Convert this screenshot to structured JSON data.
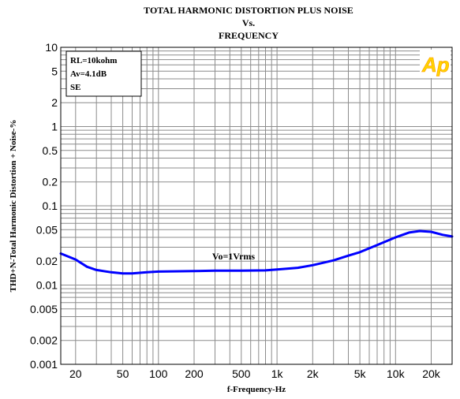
{
  "chart_data": {
    "type": "line",
    "title_lines": [
      "TOTAL HARMONIC DISTORTION PLUS NOISE",
      "Vs.",
      "FREQUENCY"
    ],
    "xlabel": "f-Frequency-Hz",
    "ylabel": "THD+N-Total Harmonic Distortion + Noise-%",
    "x_scale": "log",
    "y_scale": "log",
    "xlim": [
      15,
      30000
    ],
    "ylim": [
      0.001,
      10
    ],
    "grid": true,
    "x_ticks": [
      {
        "value": 20,
        "label": "20"
      },
      {
        "value": 50,
        "label": "50"
      },
      {
        "value": 100,
        "label": "100"
      },
      {
        "value": 200,
        "label": "200"
      },
      {
        "value": 500,
        "label": "500"
      },
      {
        "value": 1000,
        "label": "1k"
      },
      {
        "value": 2000,
        "label": "2k"
      },
      {
        "value": 5000,
        "label": "5k"
      },
      {
        "value": 10000,
        "label": "10k"
      },
      {
        "value": 20000,
        "label": "20k"
      }
    ],
    "y_ticks": [
      {
        "value": 10,
        "label": "10"
      },
      {
        "value": 5,
        "label": "5"
      },
      {
        "value": 2,
        "label": "2"
      },
      {
        "value": 1,
        "label": "1"
      },
      {
        "value": 0.5,
        "label": "0.5"
      },
      {
        "value": 0.2,
        "label": "0.2"
      },
      {
        "value": 0.1,
        "label": "0.1"
      },
      {
        "value": 0.05,
        "label": "0.05"
      },
      {
        "value": 0.02,
        "label": "0.02"
      },
      {
        "value": 0.01,
        "label": "0.01"
      },
      {
        "value": 0.005,
        "label": "0.005"
      },
      {
        "value": 0.002,
        "label": "0.002"
      },
      {
        "value": 0.001,
        "label": "0.001"
      }
    ],
    "conditions": [
      "RL=10kohm",
      "Av=4.1dB",
      "SE"
    ],
    "logo_text": "Ap",
    "series": [
      {
        "name": "Vo=1Vrms",
        "color": "#0000ff",
        "points": [
          {
            "x": 15,
            "y": 0.025
          },
          {
            "x": 20,
            "y": 0.021
          },
          {
            "x": 25,
            "y": 0.017
          },
          {
            "x": 30,
            "y": 0.0155
          },
          {
            "x": 40,
            "y": 0.0145
          },
          {
            "x": 50,
            "y": 0.014
          },
          {
            "x": 60,
            "y": 0.014
          },
          {
            "x": 80,
            "y": 0.0145
          },
          {
            "x": 100,
            "y": 0.0148
          },
          {
            "x": 200,
            "y": 0.015
          },
          {
            "x": 300,
            "y": 0.0152
          },
          {
            "x": 500,
            "y": 0.0152
          },
          {
            "x": 800,
            "y": 0.0153
          },
          {
            "x": 1000,
            "y": 0.0157
          },
          {
            "x": 1500,
            "y": 0.0165
          },
          {
            "x": 2000,
            "y": 0.0178
          },
          {
            "x": 3000,
            "y": 0.0205
          },
          {
            "x": 4000,
            "y": 0.0235
          },
          {
            "x": 5000,
            "y": 0.026
          },
          {
            "x": 7000,
            "y": 0.032
          },
          {
            "x": 10000,
            "y": 0.04
          },
          {
            "x": 13000,
            "y": 0.046
          },
          {
            "x": 16000,
            "y": 0.048
          },
          {
            "x": 20000,
            "y": 0.047
          },
          {
            "x": 25000,
            "y": 0.043
          },
          {
            "x": 30000,
            "y": 0.041
          }
        ]
      }
    ]
  }
}
